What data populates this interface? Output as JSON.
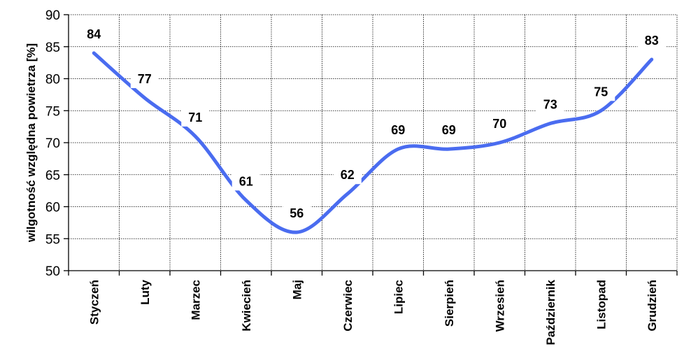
{
  "chart_data": {
    "type": "line",
    "title": "",
    "xlabel": "",
    "ylabel": "wilgotność względna powietrza [%]",
    "ylim": [
      50,
      90
    ],
    "yticks": [
      50,
      55,
      60,
      65,
      70,
      75,
      80,
      85,
      90
    ],
    "categories": [
      "Styczeń",
      "Luty",
      "Marzec",
      "Kwiecień",
      "Maj",
      "Czerwiec",
      "Lipiec",
      "Sierpień",
      "Wrzesień",
      "Październik",
      "Listopad",
      "Grudzień"
    ],
    "series": [
      {
        "values": [
          84,
          77,
          71,
          61,
          56,
          62,
          69,
          69,
          70,
          73,
          75,
          83
        ],
        "labels": [
          "84",
          "77",
          "71",
          "61",
          "56",
          "62",
          "69",
          "69",
          "70",
          "73",
          "75",
          "83"
        ],
        "color": "#4a6cf0"
      }
    ],
    "grid": true,
    "smooth": true,
    "legend": "none"
  }
}
